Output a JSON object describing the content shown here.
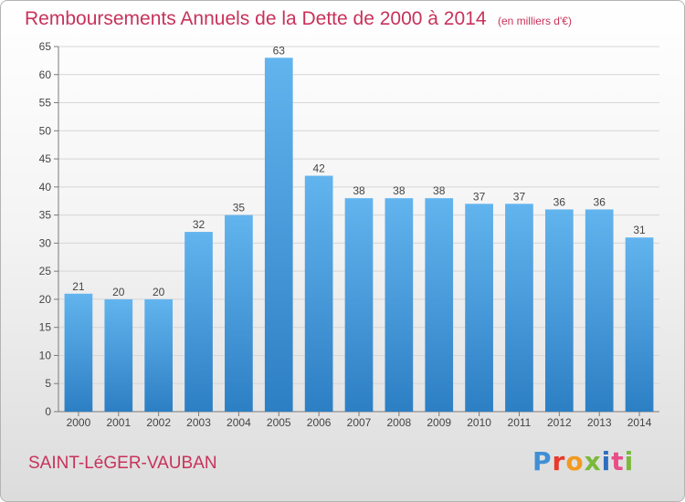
{
  "chart_data": {
    "type": "bar",
    "title": "Remboursements Annuels de la Dette de 2000 à 2014",
    "unit_note": "(en milliers d'€)",
    "categories": [
      "2000",
      "2001",
      "2002",
      "2003",
      "2004",
      "2005",
      "2006",
      "2007",
      "2008",
      "2009",
      "2010",
      "2011",
      "2012",
      "2013",
      "2014"
    ],
    "values": [
      21,
      20,
      20,
      32,
      35,
      63,
      42,
      38,
      38,
      38,
      37,
      37,
      36,
      36,
      31
    ],
    "ylim": [
      0,
      65
    ],
    "yticks": [
      0,
      5,
      10,
      15,
      20,
      25,
      30,
      35,
      40,
      45,
      50,
      55,
      60,
      65
    ],
    "xlabel": "",
    "ylabel": "",
    "grid": true,
    "bar_color": "#4a9ee0",
    "title_color": "#c8325a"
  },
  "footer": {
    "commune": "SAINT-LéGER-VAUBAN",
    "logo_text": "Proxiti"
  }
}
